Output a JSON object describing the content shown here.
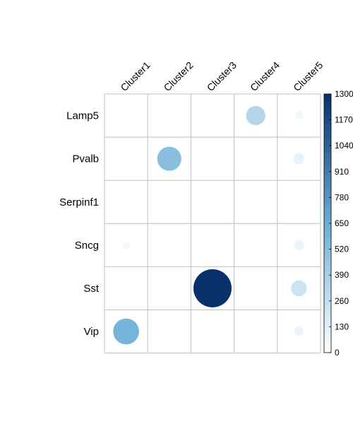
{
  "chart_data": {
    "type": "heatmap",
    "rows": [
      "Lamp5",
      "Pvalb",
      "Serpinf1",
      "Sncg",
      "Sst",
      "Vip"
    ],
    "columns": [
      "Cluster1",
      "Cluster2",
      "Cluster3",
      "Cluster4",
      "Cluster5"
    ],
    "values": [
      [
        0,
        0,
        0,
        330,
        60
      ],
      [
        0,
        520,
        0,
        0,
        110
      ],
      [
        2,
        0,
        0,
        0,
        1
      ],
      [
        55,
        0,
        0,
        0,
        90
      ],
      [
        0,
        0,
        1300,
        0,
        225
      ],
      [
        600,
        0,
        0,
        0,
        80
      ]
    ],
    "colorbar": {
      "min": 0,
      "max": 1300,
      "ticks": [
        "0",
        "130",
        "260",
        "390",
        "520",
        "650",
        "780",
        "910",
        "1040",
        "1170",
        "1300"
      ]
    },
    "cell_glyph": "circle",
    "grid": true,
    "colors": {
      "low": "#ffffff",
      "mid": "#6baed6",
      "high": "#08306b",
      "grid": "#c0c0c0"
    }
  }
}
